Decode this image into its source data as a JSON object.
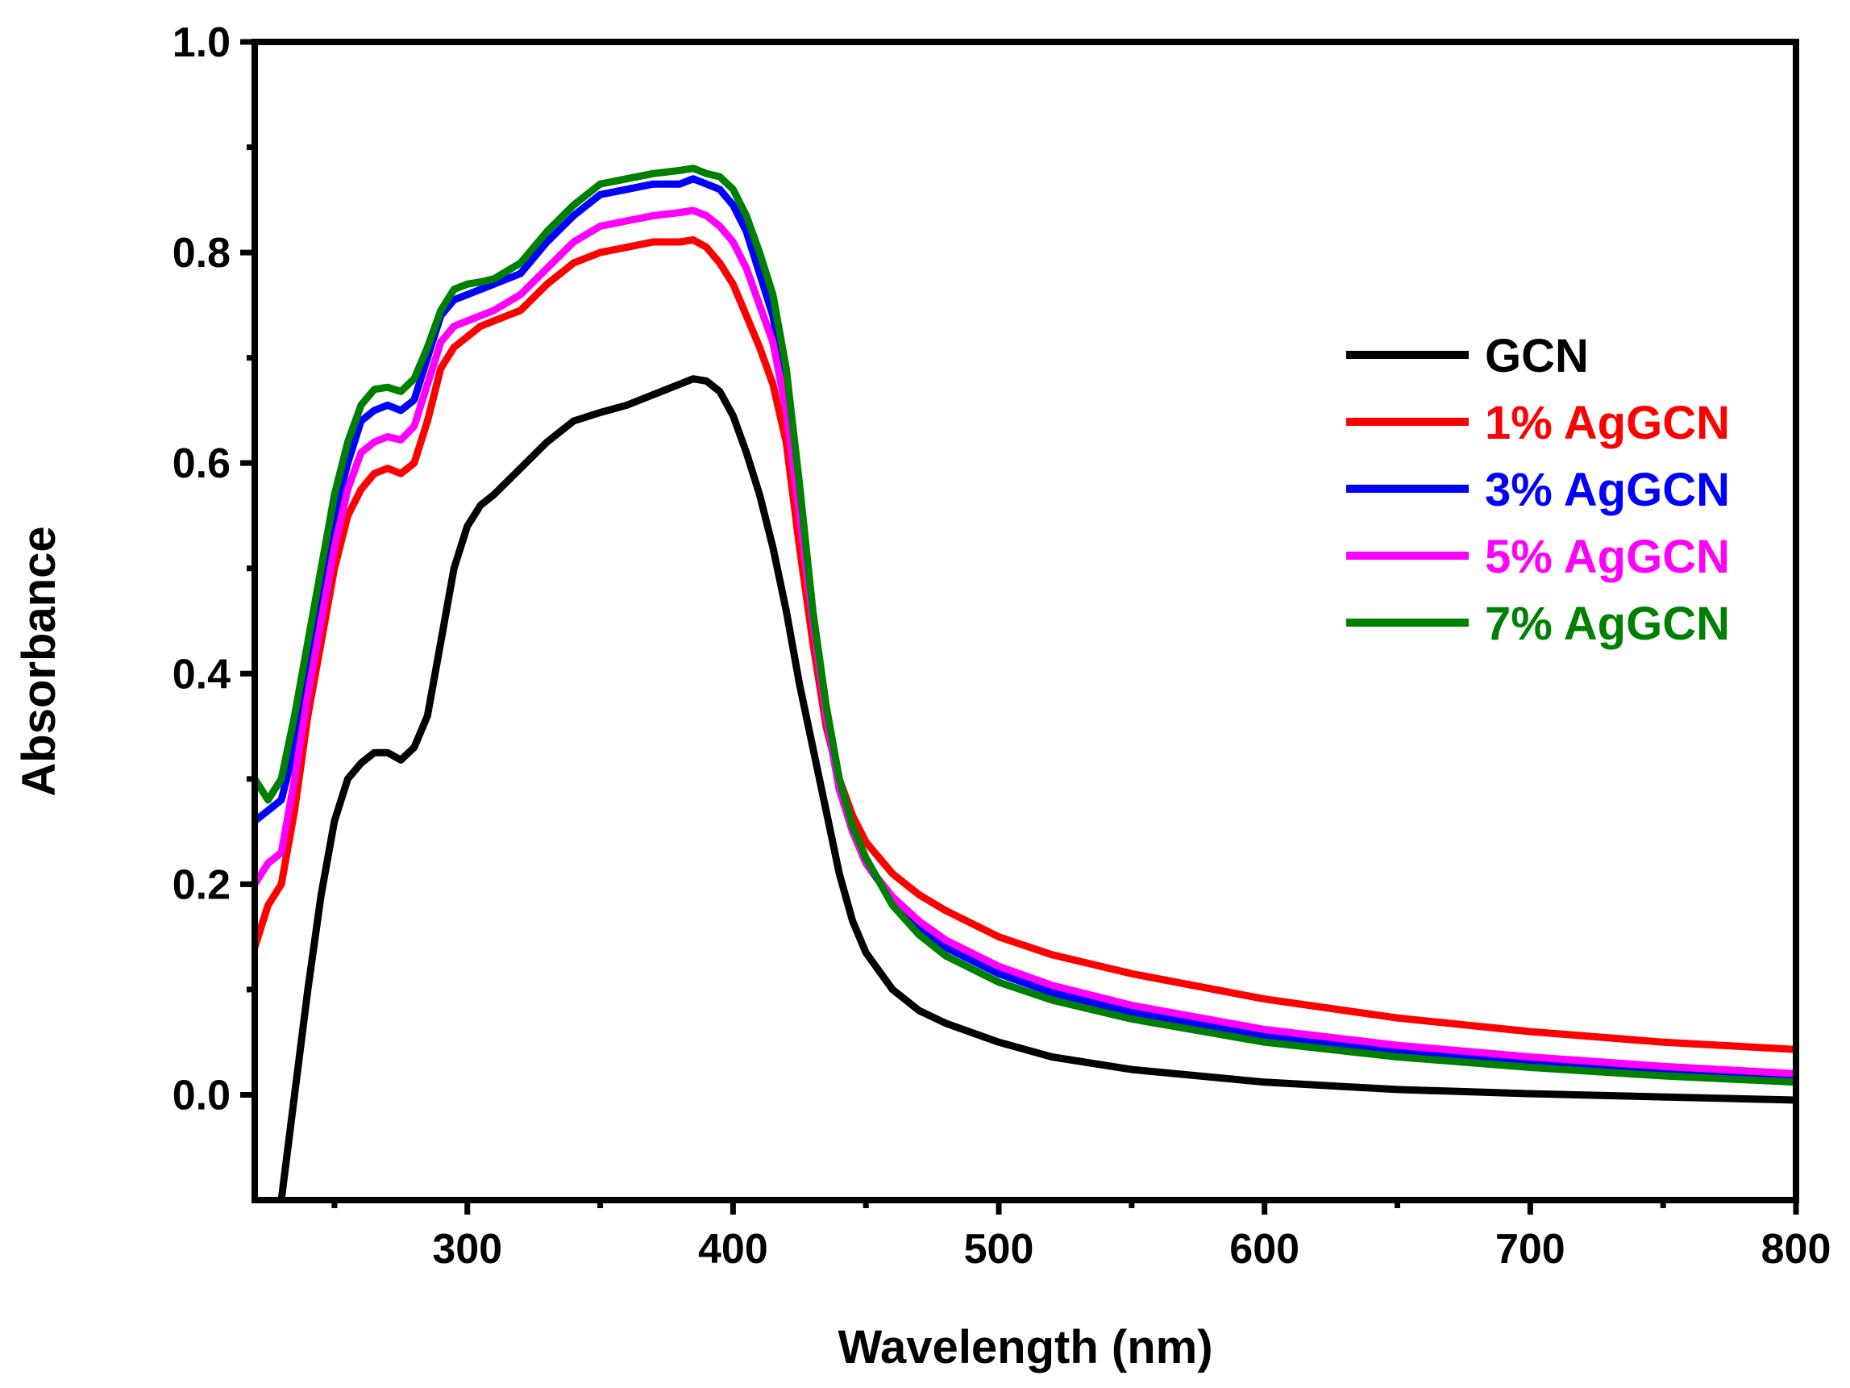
{
  "chart_data": {
    "type": "line",
    "title": "",
    "xlabel": "Wavelength (nm)",
    "ylabel": "Absorbance",
    "xlim": [
      220,
      800
    ],
    "ylim": [
      -0.1,
      1.0
    ],
    "x_ticks": [
      300,
      400,
      500,
      600,
      700,
      800
    ],
    "x_tick_labels": [
      "300",
      "400",
      "500",
      "600",
      "700",
      "800"
    ],
    "y_ticks": [
      0.0,
      0.2,
      0.4,
      0.6,
      0.8,
      1.0
    ],
    "y_tick_labels": [
      "0.0",
      "0.2",
      "0.4",
      "0.6",
      "0.8",
      "1.0"
    ],
    "grid": false,
    "legend_position": "right",
    "series": [
      {
        "name": "GCN",
        "color": "#000000",
        "x": [
          230,
          235,
          240,
          245,
          250,
          255,
          260,
          265,
          270,
          275,
          280,
          285,
          290,
          295,
          300,
          305,
          310,
          320,
          330,
          340,
          350,
          360,
          370,
          380,
          385,
          390,
          395,
          400,
          405,
          410,
          415,
          420,
          425,
          430,
          435,
          440,
          445,
          450,
          460,
          470,
          480,
          500,
          520,
          550,
          600,
          650,
          700,
          750,
          800
        ],
        "y": [
          -0.1,
          0.0,
          0.1,
          0.19,
          0.26,
          0.3,
          0.315,
          0.325,
          0.325,
          0.318,
          0.33,
          0.36,
          0.43,
          0.5,
          0.54,
          0.56,
          0.57,
          0.595,
          0.62,
          0.64,
          0.648,
          0.655,
          0.665,
          0.675,
          0.68,
          0.678,
          0.668,
          0.645,
          0.61,
          0.57,
          0.52,
          0.46,
          0.39,
          0.33,
          0.27,
          0.21,
          0.165,
          0.135,
          0.1,
          0.08,
          0.068,
          0.05,
          0.036,
          0.024,
          0.012,
          0.005,
          0.001,
          -0.002,
          -0.005
        ]
      },
      {
        "name": "1% AgGCN",
        "color": "#ff0000",
        "x": [
          220,
          225,
          230,
          235,
          240,
          245,
          250,
          255,
          260,
          265,
          270,
          275,
          280,
          285,
          290,
          295,
          300,
          305,
          310,
          320,
          330,
          340,
          350,
          360,
          370,
          380,
          385,
          390,
          395,
          400,
          405,
          410,
          415,
          420,
          425,
          430,
          435,
          440,
          445,
          450,
          460,
          470,
          480,
          500,
          520,
          550,
          600,
          650,
          700,
          750,
          800
        ],
        "y": [
          0.14,
          0.18,
          0.2,
          0.27,
          0.36,
          0.43,
          0.5,
          0.55,
          0.575,
          0.59,
          0.595,
          0.59,
          0.6,
          0.64,
          0.69,
          0.71,
          0.72,
          0.73,
          0.735,
          0.745,
          0.77,
          0.79,
          0.8,
          0.805,
          0.81,
          0.81,
          0.812,
          0.805,
          0.79,
          0.77,
          0.74,
          0.71,
          0.675,
          0.62,
          0.52,
          0.43,
          0.35,
          0.3,
          0.265,
          0.24,
          0.21,
          0.19,
          0.175,
          0.15,
          0.133,
          0.115,
          0.091,
          0.073,
          0.06,
          0.05,
          0.043
        ]
      },
      {
        "name": "3% AgGCN",
        "color": "#0000ff",
        "x": [
          220,
          225,
          230,
          235,
          240,
          245,
          250,
          255,
          260,
          265,
          270,
          275,
          280,
          285,
          290,
          295,
          300,
          305,
          310,
          320,
          330,
          340,
          350,
          360,
          370,
          380,
          385,
          390,
          395,
          400,
          405,
          410,
          415,
          420,
          425,
          430,
          435,
          440,
          445,
          450,
          460,
          470,
          480,
          500,
          520,
          550,
          600,
          650,
          700,
          750,
          800
        ],
        "y": [
          0.26,
          0.27,
          0.28,
          0.33,
          0.41,
          0.48,
          0.55,
          0.6,
          0.64,
          0.65,
          0.655,
          0.65,
          0.66,
          0.7,
          0.74,
          0.755,
          0.76,
          0.765,
          0.77,
          0.78,
          0.81,
          0.835,
          0.855,
          0.86,
          0.865,
          0.865,
          0.87,
          0.865,
          0.86,
          0.845,
          0.82,
          0.78,
          0.74,
          0.67,
          0.56,
          0.45,
          0.36,
          0.29,
          0.25,
          0.22,
          0.185,
          0.16,
          0.14,
          0.115,
          0.097,
          0.078,
          0.056,
          0.042,
          0.031,
          0.023,
          0.016
        ]
      },
      {
        "name": "5% AgGCN",
        "color": "#ff00ff",
        "x": [
          220,
          225,
          230,
          235,
          240,
          245,
          250,
          255,
          260,
          265,
          270,
          275,
          280,
          285,
          290,
          295,
          300,
          305,
          310,
          320,
          330,
          340,
          350,
          360,
          370,
          380,
          385,
          390,
          395,
          400,
          405,
          410,
          415,
          420,
          425,
          430,
          435,
          440,
          445,
          450,
          460,
          470,
          480,
          500,
          520,
          550,
          600,
          650,
          700,
          750,
          800
        ],
        "y": [
          0.2,
          0.22,
          0.23,
          0.3,
          0.38,
          0.45,
          0.52,
          0.575,
          0.61,
          0.62,
          0.625,
          0.622,
          0.635,
          0.675,
          0.715,
          0.73,
          0.735,
          0.74,
          0.745,
          0.76,
          0.785,
          0.81,
          0.825,
          0.83,
          0.835,
          0.838,
          0.84,
          0.835,
          0.825,
          0.81,
          0.785,
          0.75,
          0.715,
          0.65,
          0.55,
          0.45,
          0.36,
          0.29,
          0.25,
          0.22,
          0.188,
          0.165,
          0.147,
          0.122,
          0.104,
          0.085,
          0.062,
          0.047,
          0.036,
          0.027,
          0.02
        ]
      },
      {
        "name": "7% AgGCN",
        "color": "#008000",
        "x": [
          220,
          225,
          230,
          235,
          240,
          245,
          250,
          255,
          260,
          265,
          270,
          275,
          280,
          285,
          290,
          295,
          300,
          305,
          310,
          320,
          330,
          340,
          350,
          360,
          370,
          380,
          385,
          390,
          395,
          400,
          405,
          410,
          415,
          420,
          425,
          430,
          435,
          440,
          445,
          450,
          460,
          470,
          480,
          500,
          520,
          550,
          600,
          650,
          700,
          750,
          800
        ],
        "y": [
          0.3,
          0.28,
          0.3,
          0.36,
          0.43,
          0.5,
          0.57,
          0.62,
          0.655,
          0.67,
          0.672,
          0.668,
          0.68,
          0.71,
          0.745,
          0.765,
          0.77,
          0.772,
          0.775,
          0.79,
          0.82,
          0.845,
          0.865,
          0.87,
          0.875,
          0.878,
          0.88,
          0.875,
          0.872,
          0.86,
          0.835,
          0.8,
          0.76,
          0.69,
          0.58,
          0.46,
          0.37,
          0.3,
          0.255,
          0.225,
          0.18,
          0.152,
          0.132,
          0.107,
          0.09,
          0.072,
          0.05,
          0.036,
          0.026,
          0.018,
          0.012
        ]
      }
    ]
  }
}
